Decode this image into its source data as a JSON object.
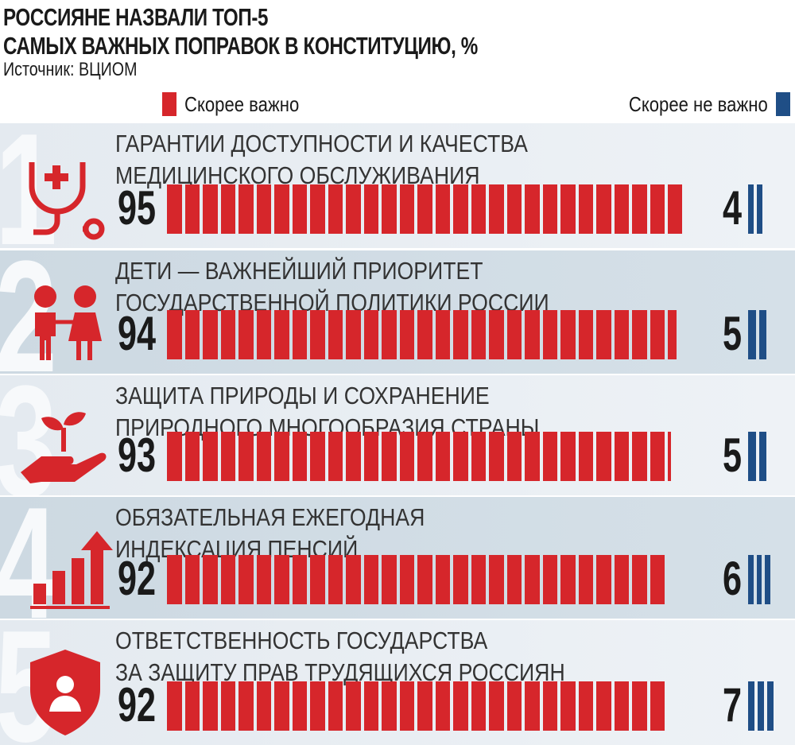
{
  "header": {
    "title_line1": "РОССИЯНЕ НАЗВАЛИ ТОП-5",
    "title_line2": "САМЫХ ВАЖНЫХ ПОПРАВОК В КОНСТИТУЦИЮ, %",
    "source": "Источник: ВЦИОМ"
  },
  "colors": {
    "important": "#d6262b",
    "not_important": "#1f4e86"
  },
  "chart_data": {
    "type": "bar",
    "title": "РОССИЯНЕ НАЗВАЛИ ТОП-5 САМЫХ ВАЖНЫХ ПОПРАВОК В КОНСТИТУЦИЮ, %",
    "legend": "top",
    "ranks": [
      "1",
      "2",
      "3",
      "4",
      "5"
    ],
    "categories": [
      "ГАРАНТИИ ДОСТУПНОСТИ И КАЧЕСТВА\nМЕДИЦИНСКОГО ОБСЛУЖИВАНИЯ",
      "ДЕТИ — ВАЖНЕЙШИЙ ПРИОРИТЕТ\nГОСУДАРСТВЕННОЙ ПОЛИТИКИ РОССИИ",
      "ЗАЩИТА ПРИРОДЫ И СОХРАНЕНИЕ\nПРИРОДНОГО МНОГООБРАЗИЯ СТРАНЫ",
      "ОБЯЗАТЕЛЬНАЯ ЕЖЕГОДНАЯ\nИНДЕКСАЦИЯ ПЕНСИЙ",
      "ОТВЕТСТВЕННОСТЬ ГОСУДАРСТВА\nЗА ЗАЩИТУ ПРАВ ТРУДЯЩИХСЯ РОССИЯН"
    ],
    "icons": [
      "stethoscope-icon",
      "children-icon",
      "plant-in-hand-icon",
      "growth-chart-icon",
      "shield-person-icon"
    ],
    "series": [
      {
        "name": "Скорее важно",
        "values": [
          95,
          94,
          93,
          92,
          92
        ]
      },
      {
        "name": "Скорее не важно",
        "values": [
          4,
          5,
          5,
          6,
          7
        ]
      }
    ]
  }
}
